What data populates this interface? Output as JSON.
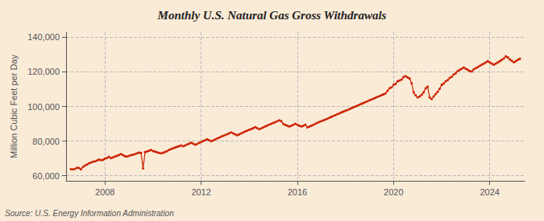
{
  "chart_data": {
    "type": "line",
    "title": "Monthly U.S. Natural Gas Gross Withdrawals",
    "ylabel": "Million Cubic Feet per Day",
    "source": "Source: U.S. Energy Information Administration",
    "color": "#cc2200",
    "marker": "circle",
    "grid": true,
    "xlim": [
      2006.3833333333332,
      2025.45
    ],
    "xticks": [
      2008,
      2012,
      2016,
      2020,
      2024
    ],
    "ylim": [
      57000,
      143000
    ],
    "yticks": [
      {
        "value": 60000,
        "label": "60,000"
      },
      {
        "value": 80000,
        "label": "80,000"
      },
      {
        "value": 100000,
        "label": "100,000"
      },
      {
        "value": 120000,
        "label": "120,000"
      },
      {
        "value": 140000,
        "label": "140,000"
      }
    ],
    "x": [
      2006.5833333333333,
      2006.6666666666667,
      2006.75,
      2006.8333333333333,
      2006.9166666666667,
      2007.0,
      2007.0833333333333,
      2007.1666666666667,
      2007.25,
      2007.3333333333333,
      2007.4166666666667,
      2007.5,
      2007.5833333333333,
      2007.6666666666667,
      2007.75,
      2007.8333333333333,
      2007.9166666666667,
      2008.0,
      2008.0833333333333,
      2008.1666666666667,
      2008.25,
      2008.3333333333333,
      2008.4166666666667,
      2008.5,
      2008.5833333333333,
      2008.6666666666667,
      2008.75,
      2008.8333333333333,
      2008.9166666666667,
      2009.0,
      2009.0833333333333,
      2009.1666666666667,
      2009.25,
      2009.3333333333333,
      2009.4166666666667,
      2009.5,
      2009.5833333333333,
      2009.6666666666667,
      2009.75,
      2009.8333333333333,
      2009.9166666666667,
      2010.0,
      2010.0833333333333,
      2010.1666666666667,
      2010.25,
      2010.3333333333333,
      2010.4166666666667,
      2010.5,
      2010.5833333333333,
      2010.6666666666667,
      2010.75,
      2010.8333333333333,
      2010.9166666666667,
      2011.0,
      2011.0833333333333,
      2011.1666666666667,
      2011.25,
      2011.3333333333333,
      2011.4166666666667,
      2011.5,
      2011.5833333333333,
      2011.6666666666667,
      2011.75,
      2011.8333333333333,
      2011.9166666666667,
      2012.0,
      2012.0833333333333,
      2012.1666666666667,
      2012.25,
      2012.3333333333333,
      2012.4166666666667,
      2012.5,
      2012.5833333333333,
      2012.6666666666667,
      2012.75,
      2012.8333333333333,
      2012.9166666666667,
      2013.0,
      2013.0833333333333,
      2013.1666666666667,
      2013.25,
      2013.3333333333333,
      2013.4166666666667,
      2013.5,
      2013.5833333333333,
      2013.6666666666667,
      2013.75,
      2013.8333333333333,
      2013.9166666666667,
      2014.0,
      2014.0833333333333,
      2014.1666666666667,
      2014.25,
      2014.3333333333333,
      2014.4166666666667,
      2014.5,
      2014.5833333333333,
      2014.6666666666667,
      2014.75,
      2014.8333333333333,
      2014.9166666666667,
      2015.0,
      2015.0833333333333,
      2015.1666666666667,
      2015.25,
      2015.3333333333333,
      2015.4166666666667,
      2015.5,
      2015.5833333333333,
      2015.6666666666667,
      2015.75,
      2015.8333333333333,
      2015.9166666666667,
      2016.0,
      2016.0833333333333,
      2016.1666666666667,
      2016.25,
      2016.3333333333333,
      2016.4166666666667,
      2016.5,
      2016.5833333333333,
      2016.6666666666667,
      2016.75,
      2016.8333333333333,
      2016.9166666666667,
      2017.0,
      2017.0833333333333,
      2017.1666666666667,
      2017.25,
      2017.3333333333333,
      2017.4166666666667,
      2017.5,
      2017.5833333333333,
      2017.6666666666667,
      2017.75,
      2017.8333333333333,
      2017.9166666666667,
      2018.0,
      2018.0833333333333,
      2018.1666666666667,
      2018.25,
      2018.3333333333333,
      2018.4166666666667,
      2018.5,
      2018.5833333333333,
      2018.6666666666667,
      2018.75,
      2018.8333333333333,
      2018.9166666666667,
      2019.0,
      2019.0833333333333,
      2019.1666666666667,
      2019.25,
      2019.3333333333333,
      2019.4166666666667,
      2019.5,
      2019.5833333333333,
      2019.6666666666667,
      2019.75,
      2019.8333333333333,
      2019.9166666666667,
      2020.0,
      2020.0833333333333,
      2020.1666666666667,
      2020.25,
      2020.3333333333333,
      2020.4166666666667,
      2020.5,
      2020.5833333333333,
      2020.6666666666667,
      2020.75,
      2020.8333333333333,
      2020.9166666666667,
      2021.0,
      2021.0833333333333,
      2021.1666666666667,
      2021.25,
      2021.3333333333333,
      2021.4166666666667,
      2021.5,
      2021.5833333333333,
      2021.6666666666667,
      2021.75,
      2021.8333333333333,
      2021.9166666666667,
      2022.0,
      2022.0833333333333,
      2022.1666666666667,
      2022.25,
      2022.3333333333333,
      2022.4166666666667,
      2022.5,
      2022.5833333333333,
      2022.6666666666667,
      2022.75,
      2022.8333333333333,
      2022.9166666666667,
      2023.0,
      2023.0833333333333,
      2023.1666666666667,
      2023.25,
      2023.3333333333333,
      2023.4166666666667,
      2023.5,
      2023.5833333333333,
      2023.6666666666667,
      2023.75,
      2023.8333333333333,
      2023.9166666666667,
      2024.0,
      2024.0833333333333,
      2024.1666666666667,
      2024.25,
      2024.3333333333333,
      2024.4166666666667,
      2024.5,
      2024.5833333333333,
      2024.6666666666667,
      2024.75,
      2024.8333333333333,
      2024.9166666666667,
      2025.0,
      2025.0833333333333,
      2025.1666666666667,
      2025.25
    ],
    "values": [
      63761,
      63636,
      63879,
      64521,
      64398,
      63612,
      65029,
      65850,
      66387,
      67140,
      67583,
      68032,
      68290,
      68743,
      69256,
      68983,
      69143,
      69827,
      70234,
      70891,
      70147,
      70523,
      71034,
      71456,
      72012,
      72489,
      71834,
      71234,
      71089,
      71423,
      71876,
      72134,
      72489,
      72934,
      73312,
      73098,
      64200,
      73560,
      74012,
      74389,
      74823,
      74234,
      73890,
      73456,
      73123,
      72890,
      73234,
      73678,
      74234,
      74890,
      75345,
      75823,
      76234,
      76678,
      77034,
      77489,
      77012,
      77456,
      78012,
      78489,
      79012,
      78456,
      77890,
      78312,
      78934,
      79456,
      80012,
      80489,
      81012,
      80456,
      79890,
      80345,
      80912,
      81489,
      82034,
      82589,
      83012,
      83489,
      83934,
      84489,
      85012,
      84456,
      83890,
      83345,
      83890,
      84456,
      85012,
      85589,
      86034,
      86512,
      86934,
      87489,
      88012,
      87456,
      86890,
      87345,
      87890,
      88456,
      89012,
      89567,
      90034,
      90512,
      90934,
      91489,
      92012,
      91456,
      89890,
      89345,
      88890,
      88345,
      88890,
      89456,
      90012,
      89456,
      88890,
      88345,
      88890,
      89456,
      87890,
      88345,
      88890,
      89456,
      90012,
      90567,
      91034,
      91512,
      91934,
      92456,
      92890,
      93456,
      94012,
      94567,
      95012,
      95567,
      96012,
      96567,
      97034,
      97512,
      97934,
      98456,
      99012,
      99567,
      100034,
      100512,
      101034,
      101567,
      102034,
      102567,
      103034,
      103567,
      104034,
      104567,
      105034,
      105567,
      106034,
      106567,
      107034,
      107567,
      109034,
      110567,
      111034,
      112567,
      113034,
      114567,
      115034,
      115567,
      117034,
      117500,
      116800,
      116200,
      113500,
      108200,
      106500,
      105200,
      105800,
      106700,
      108200,
      110500,
      111500,
      105200,
      104300,
      105800,
      107200,
      108500,
      110200,
      112500,
      113200,
      114500,
      115200,
      116500,
      117200,
      118500,
      119200,
      120500,
      121200,
      121800,
      122500,
      121800,
      121200,
      120500,
      120200,
      121500,
      122200,
      122800,
      123500,
      124200,
      124800,
      125500,
      126200,
      125500,
      124800,
      124200,
      124800,
      125500,
      126200,
      127000,
      127800,
      129000,
      128400,
      127200,
      126400,
      125600,
      126200,
      127000,
      127600
    ]
  }
}
